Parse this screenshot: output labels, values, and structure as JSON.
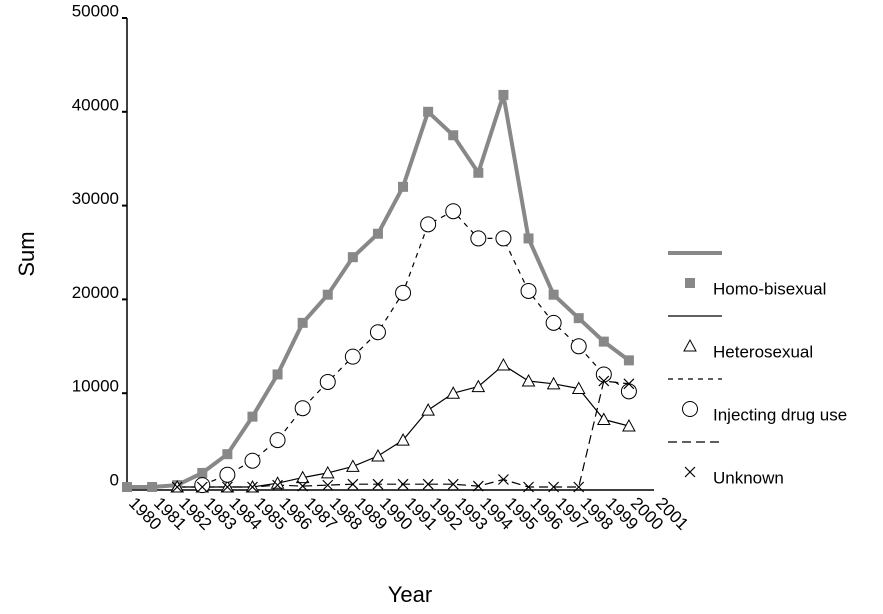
{
  "chart_data": {
    "type": "line",
    "x_label": "Year",
    "y_label": "Sum",
    "categories": [
      "1980",
      "1981",
      "1982",
      "1983",
      "1984",
      "1985",
      "1986",
      "1987",
      "1988",
      "1989",
      "1990",
      "1991",
      "1992",
      "1993",
      "1994",
      "1995",
      "1996",
      "1997",
      "1998",
      "1999",
      "2000",
      "2001"
    ],
    "ylim": [
      0,
      50000
    ],
    "yticks": [
      0,
      10000,
      20000,
      30000,
      40000,
      50000
    ],
    "series": [
      {
        "name": "Homo-bisexual",
        "color": "#888888",
        "width": 4,
        "dash": "none",
        "marker": "square",
        "values": [
          0,
          0,
          200,
          1500,
          3500,
          7500,
          12000,
          17500,
          20500,
          24500,
          27000,
          32000,
          40000,
          37500,
          33500,
          41800,
          26500,
          20500,
          18000,
          15500,
          13500,
          null
        ]
      },
      {
        "name": "Heterosexual",
        "color": "#000000",
        "width": 1.2,
        "dash": "none",
        "marker": "triangle",
        "values": [
          null,
          null,
          0,
          0,
          0,
          0,
          400,
          1000,
          1500,
          2200,
          3300,
          5000,
          8200,
          10000,
          10700,
          13000,
          11300,
          11000,
          10500,
          7200,
          6500,
          null
        ]
      },
      {
        "name": "Injecting drug use",
        "color": "#000000",
        "width": 1.2,
        "dash": "5,5",
        "marker": "circle",
        "values": [
          null,
          null,
          null,
          200,
          1300,
          2800,
          5000,
          8400,
          11200,
          13900,
          16500,
          20700,
          28000,
          29400,
          26500,
          26500,
          20900,
          17500,
          15000,
          12000,
          10200,
          null
        ]
      },
      {
        "name": "Unknown",
        "color": "#000000",
        "width": 1.2,
        "dash": "9,5",
        "marker": "x",
        "values": [
          null,
          null,
          0,
          0,
          0,
          0,
          200,
          100,
          200,
          300,
          300,
          300,
          300,
          300,
          100,
          800,
          0,
          0,
          0,
          11300,
          11000,
          null
        ]
      }
    ]
  }
}
